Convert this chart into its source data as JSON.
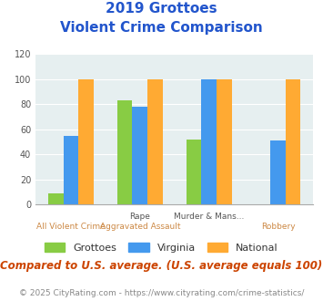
{
  "title_line1": "2019 Grottoes",
  "title_line2": "Violent Crime Comparison",
  "cat_labels_top": [
    "",
    "Rape",
    "Murder & Mans...",
    ""
  ],
  "cat_labels_bot": [
    "All Violent Crime",
    "Aggravated Assault",
    "",
    "Robbery"
  ],
  "groups": [
    "Grottoes",
    "Virginia",
    "National"
  ],
  "values": [
    [
      9,
      55,
      100
    ],
    [
      83,
      78,
      100
    ],
    [
      52,
      100,
      100
    ],
    [
      0,
      51,
      100
    ]
  ],
  "colors": [
    "#88cc44",
    "#4499ee",
    "#ffaa33"
  ],
  "bar_width": 0.22,
  "ylim": [
    0,
    120
  ],
  "yticks": [
    0,
    20,
    40,
    60,
    80,
    100,
    120
  ],
  "plot_bg": "#e6eff0",
  "fig_bg": "#ffffff",
  "title_color": "#2255cc",
  "subtitle_note": "Compared to U.S. average. (U.S. average equals 100)",
  "footer": "© 2025 CityRating.com - https://www.cityrating.com/crime-statistics/",
  "note_color": "#cc4400",
  "footer_color": "#888888",
  "grid_color": "#ffffff",
  "title_fontsize": 11,
  "note_fontsize": 8.5,
  "footer_fontsize": 6.5,
  "legend_fontsize": 8,
  "tick_label_fontsize": 7,
  "xlabel_top_color": "#555555",
  "xlabel_bot_color": "#cc8844"
}
